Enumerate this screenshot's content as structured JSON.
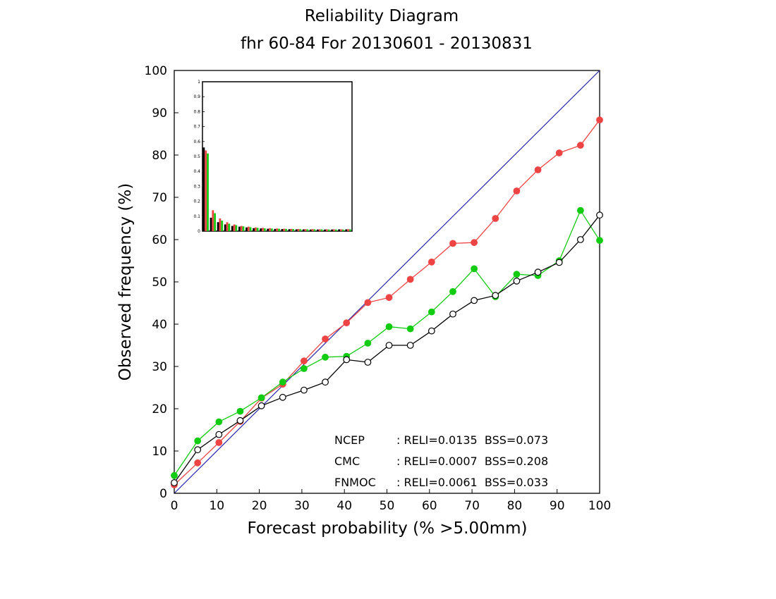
{
  "chart_data": {
    "type": "line",
    "title": "Reliability Diagram",
    "subtitle": "fhr 60-84 For 20130601 - 20130831",
    "xlabel": "Forecast probability (% >5.00mm)",
    "ylabel": "Observed frequency (%)",
    "xlim": [
      0,
      100
    ],
    "ylim": [
      0,
      100
    ],
    "x_ticks": [
      "0",
      "10",
      "20",
      "30",
      "40",
      "50",
      "60",
      "70",
      "80",
      "90",
      "100"
    ],
    "y_ticks": [
      "0",
      "10",
      "20",
      "30",
      "40",
      "50",
      "60",
      "70",
      "80",
      "90",
      "100"
    ],
    "grid": false,
    "legend_position": "bottom-right",
    "diagonal": {
      "color": "#2222aa",
      "from": [
        0,
        0
      ],
      "to": [
        100,
        100
      ]
    },
    "x": [
      0,
      5.5,
      10.5,
      15.5,
      20.5,
      25.5,
      30.5,
      35.5,
      40.5,
      45.5,
      50.5,
      55.5,
      60.5,
      65.5,
      70.5,
      75.5,
      80.5,
      85.5,
      90.5,
      95.5,
      100
    ],
    "series": [
      {
        "name": "NCEP",
        "color": "#000000",
        "marker": "open-circle",
        "stats": ": RELI=0.0135  BSS=0.073",
        "values": [
          2.5,
          10.3,
          13.9,
          17.2,
          20.7,
          22.7,
          24.4,
          26.3,
          31.6,
          31.0,
          35.0,
          35.0,
          38.4,
          42.4,
          45.6,
          46.8,
          50.2,
          52.3,
          54.6,
          60.0,
          65.8
        ]
      },
      {
        "name": "CMC",
        "color": "#ee4444",
        "marker": "filled-circle",
        "stats": ": RELI=0.0007  BSS=0.208",
        "values": [
          2.0,
          7.2,
          12.0,
          17.0,
          22.5,
          25.8,
          31.3,
          36.5,
          40.3,
          45.1,
          46.3,
          50.6,
          54.7,
          59.1,
          59.3,
          65.0,
          71.5,
          76.5,
          80.5,
          82.3,
          88.3
        ]
      },
      {
        "name": "FNMOC",
        "color": "#11cc11",
        "marker": "filled-circle",
        "stats": ": RELI=0.0061  BSS=0.033",
        "values": [
          4.2,
          12.4,
          16.9,
          19.4,
          22.6,
          26.3,
          29.5,
          32.2,
          32.4,
          35.5,
          39.4,
          38.9,
          42.9,
          47.7,
          53.1,
          46.5,
          51.8,
          51.5,
          55.0,
          66.9,
          59.8
        ]
      }
    ],
    "inset": {
      "type": "bar",
      "ylim": [
        0,
        1
      ],
      "y_ticks": [
        "0",
        "0.1",
        "0.2",
        "0.3",
        "0.4",
        "0.5",
        "0.6",
        "0.7",
        "0.8",
        "0.9",
        "1"
      ],
      "series": [
        {
          "name": "NCEP",
          "color": "#000000",
          "values": [
            0.56,
            0.09,
            0.06,
            0.045,
            0.035,
            0.03,
            0.025,
            0.02,
            0.018,
            0.016,
            0.015,
            0.014,
            0.013,
            0.012,
            0.012,
            0.011,
            0.011,
            0.011,
            0.011,
            0.012,
            0.012
          ]
        },
        {
          "name": "CMC",
          "color": "#ee4444",
          "values": [
            0.54,
            0.14,
            0.085,
            0.06,
            0.045,
            0.035,
            0.03,
            0.025,
            0.022,
            0.02,
            0.018,
            0.016,
            0.015,
            0.014,
            0.013,
            0.013,
            0.012,
            0.012,
            0.012,
            0.012,
            0.013
          ]
        },
        {
          "name": "FNMOC",
          "color": "#11cc11",
          "values": [
            0.52,
            0.12,
            0.07,
            0.05,
            0.04,
            0.032,
            0.026,
            0.022,
            0.019,
            0.017,
            0.016,
            0.015,
            0.014,
            0.013,
            0.012,
            0.012,
            0.012,
            0.011,
            0.011,
            0.011,
            0.012
          ]
        }
      ]
    }
  }
}
